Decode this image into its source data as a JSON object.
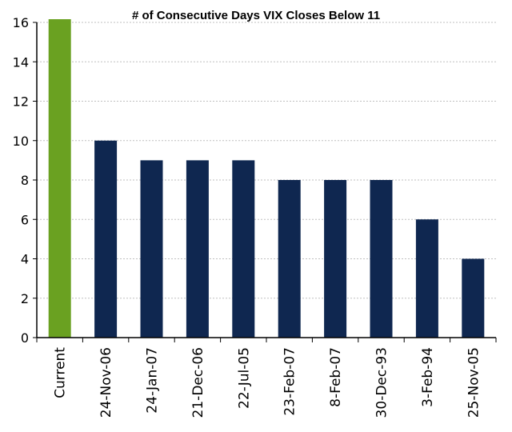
{
  "chart_data": {
    "type": "bar",
    "title": "# of Consecutive Days VIX Closes Below 11",
    "xlabel": "",
    "ylabel": "",
    "categories": [
      "Current",
      "24-Nov-06",
      "24-Jan-07",
      "21-Dec-06",
      "22-Jul-05",
      "23-Feb-07",
      "8-Feb-07",
      "30-Dec-93",
      "3-Feb-94",
      "25-Nov-05"
    ],
    "values": [
      16.2,
      10,
      9,
      9,
      9,
      8,
      8,
      8,
      6,
      4
    ],
    "ylim": [
      0,
      16
    ],
    "yticks": [
      0,
      2,
      4,
      6,
      8,
      10,
      12,
      14,
      16
    ],
    "grid": true,
    "legend": "none",
    "colors": {
      "highlight": "#6aa121",
      "bars": "#0f2750",
      "axis": "#000000",
      "grid": "#bfbfbf"
    },
    "highlight_index": 0
  }
}
